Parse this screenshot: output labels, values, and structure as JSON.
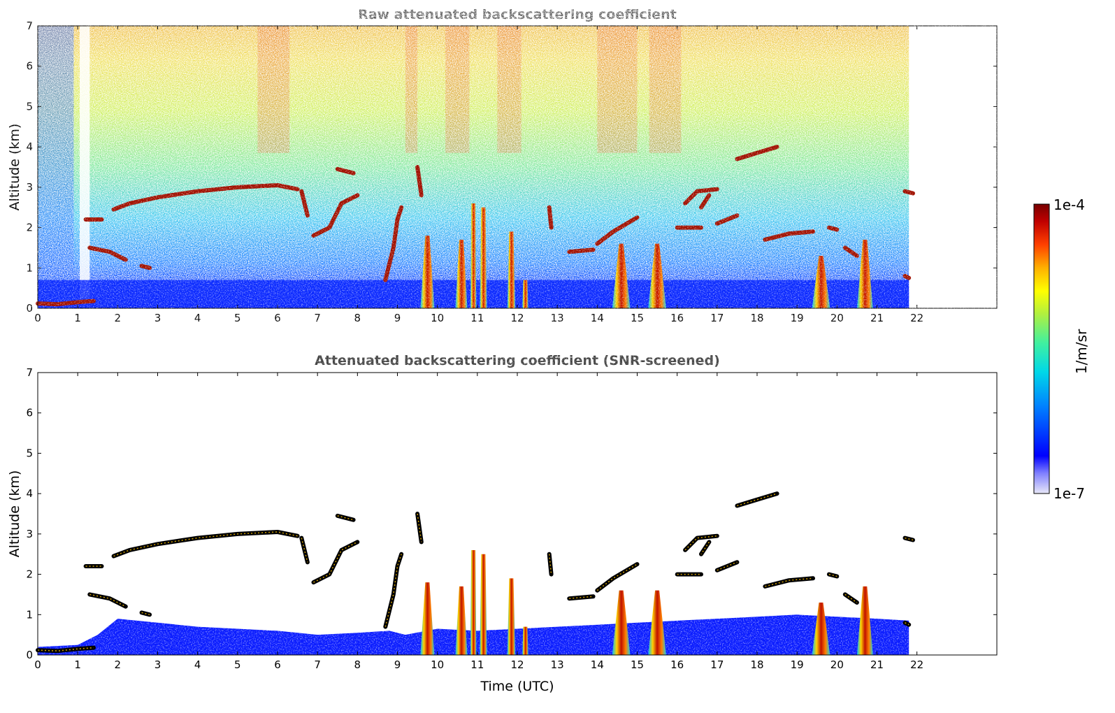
{
  "chart_data": [
    {
      "type": "heatmap",
      "title": "Raw attenuated backscattering coefficient",
      "xlabel": "",
      "ylabel": "Altitude (km)",
      "xlim": [
        0,
        24
      ],
      "ylim": [
        0,
        7
      ],
      "x_ticks": [
        "0",
        "1",
        "2",
        "3",
        "4",
        "5",
        "6",
        "7",
        "8",
        "9",
        "10",
        "11",
        "12",
        "13",
        "14",
        "15",
        "16",
        "17",
        "18",
        "19",
        "20",
        "21",
        "22"
      ],
      "y_ticks": [
        "0",
        "1",
        "2",
        "3",
        "4",
        "5",
        "6",
        "7"
      ],
      "data_end_time": 21.8,
      "layers": [
        {
          "name": "low cloud",
          "points": [
            [
              0,
              0.12
            ],
            [
              0.5,
              0.1
            ],
            [
              1.0,
              0.15
            ],
            [
              1.4,
              0.18
            ]
          ]
        },
        {
          "name": "cloud layer",
          "points": [
            [
              1.2,
              2.2
            ],
            [
              1.6,
              2.2
            ]
          ]
        },
        {
          "name": "cloud layer",
          "points": [
            [
              1.3,
              1.5
            ],
            [
              1.8,
              1.4
            ],
            [
              2.2,
              1.2
            ]
          ]
        },
        {
          "name": "cloud layer",
          "points": [
            [
              2.6,
              1.05
            ],
            [
              2.8,
              1.0
            ]
          ]
        },
        {
          "name": "cloud layer",
          "points": [
            [
              1.9,
              2.45
            ],
            [
              2.3,
              2.6
            ],
            [
              3.0,
              2.75
            ],
            [
              4.0,
              2.9
            ],
            [
              5.0,
              3.0
            ],
            [
              6.0,
              3.05
            ],
            [
              6.5,
              2.95
            ]
          ]
        },
        {
          "name": "cloud layer",
          "points": [
            [
              6.6,
              2.9
            ],
            [
              6.75,
              2.3
            ]
          ]
        },
        {
          "name": "cloud layer",
          "points": [
            [
              6.9,
              1.8
            ],
            [
              7.3,
              2.0
            ],
            [
              7.6,
              2.6
            ],
            [
              8.0,
              2.8
            ]
          ]
        },
        {
          "name": "cloud layer",
          "points": [
            [
              7.5,
              3.45
            ],
            [
              7.9,
              3.35
            ]
          ]
        },
        {
          "name": "cloud layer",
          "points": [
            [
              8.7,
              0.7
            ],
            [
              8.9,
              1.5
            ],
            [
              9.0,
              2.2
            ],
            [
              9.1,
              2.5
            ]
          ]
        },
        {
          "name": "cloud layer",
          "points": [
            [
              9.5,
              3.5
            ],
            [
              9.6,
              2.8
            ]
          ]
        },
        {
          "name": "cloud layer",
          "points": [
            [
              12.8,
              2.5
            ],
            [
              12.85,
              2.0
            ]
          ]
        },
        {
          "name": "cloud layer",
          "points": [
            [
              13.3,
              1.4
            ],
            [
              13.9,
              1.45
            ]
          ]
        },
        {
          "name": "cloud layer",
          "points": [
            [
              14.0,
              1.6
            ],
            [
              14.4,
              1.9
            ],
            [
              15.0,
              2.25
            ]
          ]
        },
        {
          "name": "cloud layer",
          "points": [
            [
              16.0,
              2.0
            ],
            [
              16.6,
              2.0
            ]
          ]
        },
        {
          "name": "cloud layer",
          "points": [
            [
              16.2,
              2.6
            ],
            [
              16.5,
              2.9
            ],
            [
              17.0,
              2.95
            ]
          ]
        },
        {
          "name": "cloud layer",
          "points": [
            [
              16.8,
              2.8
            ],
            [
              16.6,
              2.5
            ]
          ]
        },
        {
          "name": "cloud layer",
          "points": [
            [
              17.0,
              2.1
            ],
            [
              17.5,
              2.3
            ]
          ]
        },
        {
          "name": "cloud layer",
          "points": [
            [
              17.5,
              3.7
            ],
            [
              18.0,
              3.85
            ],
            [
              18.5,
              4.0
            ]
          ]
        },
        {
          "name": "cloud layer",
          "points": [
            [
              18.2,
              1.7
            ],
            [
              18.8,
              1.85
            ],
            [
              19.4,
              1.9
            ]
          ]
        },
        {
          "name": "cloud layer",
          "points": [
            [
              19.8,
              2.0
            ],
            [
              20.0,
              1.95
            ]
          ]
        },
        {
          "name": "cloud layer",
          "points": [
            [
              20.2,
              1.5
            ],
            [
              20.5,
              1.3
            ]
          ]
        },
        {
          "name": "cloud layer",
          "points": [
            [
              21.7,
              2.9
            ],
            [
              21.9,
              2.85
            ]
          ]
        },
        {
          "name": "cloud layer",
          "points": [
            [
              21.7,
              0.8
            ],
            [
              21.8,
              0.75
            ]
          ]
        }
      ],
      "plumes": [
        {
          "time": 9.75,
          "top": 1.8,
          "width": 0.35
        },
        {
          "time": 10.6,
          "top": 1.7,
          "width": 0.3
        },
        {
          "time": 10.9,
          "top": 2.6,
          "width": 0.15
        },
        {
          "time": 11.15,
          "top": 2.5,
          "width": 0.18
        },
        {
          "time": 11.85,
          "top": 1.9,
          "width": 0.2
        },
        {
          "time": 12.2,
          "top": 0.7,
          "width": 0.15
        },
        {
          "time": 14.6,
          "top": 1.6,
          "width": 0.45
        },
        {
          "time": 15.5,
          "top": 1.6,
          "width": 0.45
        },
        {
          "time": 19.6,
          "top": 1.3,
          "width": 0.45
        },
        {
          "time": 20.7,
          "top": 1.7,
          "width": 0.4
        }
      ]
    },
    {
      "type": "heatmap",
      "title": "Attenuated backscattering coefficient (SNR-screened)",
      "xlabel": "Time (UTC)",
      "ylabel": "Altitude (km)",
      "xlim": [
        0,
        24
      ],
      "ylim": [
        0,
        7
      ],
      "x_ticks": [
        "0",
        "1",
        "2",
        "3",
        "4",
        "5",
        "6",
        "7",
        "8",
        "9",
        "10",
        "11",
        "12",
        "13",
        "14",
        "15",
        "16",
        "17",
        "18",
        "19",
        "20",
        "21",
        "22"
      ],
      "y_ticks": [
        "0",
        "1",
        "2",
        "3",
        "4",
        "5",
        "6",
        "7"
      ],
      "data_end_time": 21.8,
      "boundary_layer_top": [
        [
          0,
          0.2
        ],
        [
          1.0,
          0.25
        ],
        [
          1.5,
          0.5
        ],
        [
          2.0,
          0.9
        ],
        [
          3.0,
          0.8
        ],
        [
          4.0,
          0.7
        ],
        [
          5.0,
          0.65
        ],
        [
          6.0,
          0.6
        ],
        [
          7.0,
          0.5
        ],
        [
          8.0,
          0.55
        ],
        [
          8.8,
          0.6
        ],
        [
          9.2,
          0.5
        ],
        [
          10.0,
          0.65
        ],
        [
          11.0,
          0.6
        ],
        [
          12.0,
          0.65
        ],
        [
          13.0,
          0.7
        ],
        [
          14.0,
          0.75
        ],
        [
          15.0,
          0.8
        ],
        [
          16.0,
          0.85
        ],
        [
          17.0,
          0.9
        ],
        [
          18.0,
          0.95
        ],
        [
          19.0,
          1.0
        ],
        [
          20.0,
          0.95
        ],
        [
          21.0,
          0.9
        ],
        [
          21.8,
          0.85
        ]
      ]
    }
  ],
  "colorbar": {
    "label": "1/m/sr",
    "max_label": "1e-4",
    "min_label": "1e-7",
    "scale": "log",
    "colormap": [
      "#e8e8f8",
      "#0000ff",
      "#00a0ff",
      "#00e0e0",
      "#50ff90",
      "#c0ff40",
      "#ffff00",
      "#ffa000",
      "#ff3000",
      "#a00000",
      "#7a0000"
    ]
  }
}
